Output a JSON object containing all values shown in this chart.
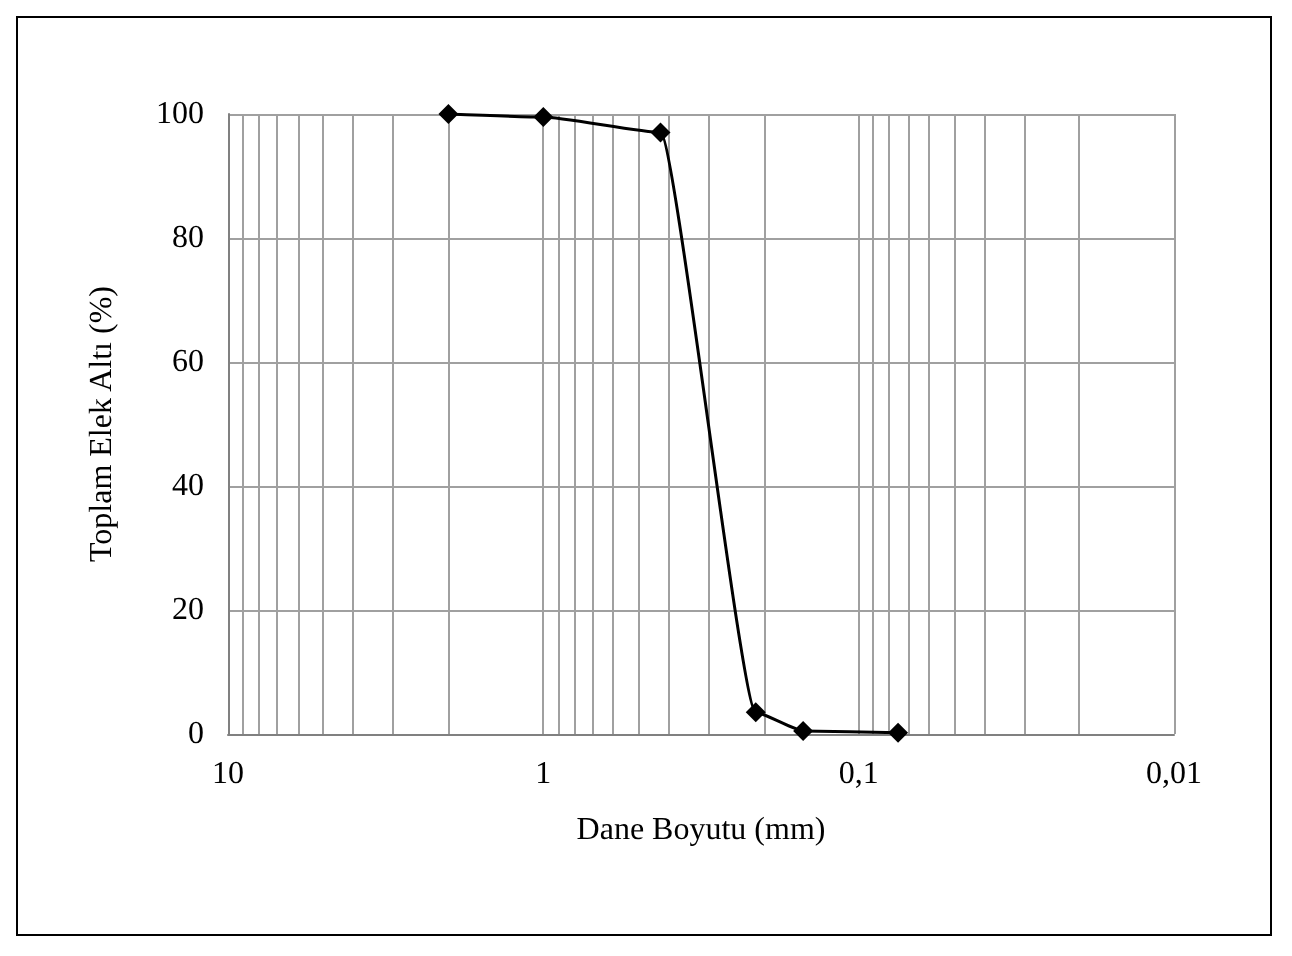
{
  "chart_data": {
    "type": "line",
    "xlabel": "Dane Boyutu (mm)",
    "ylabel": "Toplam Elek Altı (%)",
    "x": [
      2,
      1,
      0.425,
      0.212,
      0.15,
      0.075
    ],
    "series": [
      {
        "color": "#000000",
        "values": [
          100,
          99.5,
          97,
          3.5,
          0.5,
          0.2
        ]
      }
    ],
    "log": "x",
    "xlim": [
      10,
      0.01
    ],
    "xticks": [
      {
        "value": 10,
        "label": "10"
      },
      {
        "value": 9,
        "label": null
      },
      {
        "value": 8,
        "label": null
      },
      {
        "value": 7,
        "label": null
      },
      {
        "value": 6,
        "label": null
      },
      {
        "value": 5,
        "label": null
      },
      {
        "value": 4,
        "label": null
      },
      {
        "value": 3,
        "label": null
      },
      {
        "value": 2,
        "label": null
      },
      {
        "value": 1,
        "label": "1"
      },
      {
        "value": 0.9,
        "label": null
      },
      {
        "value": 0.8,
        "label": null
      },
      {
        "value": 0.7,
        "label": null
      },
      {
        "value": 0.6,
        "label": null
      },
      {
        "value": 0.5,
        "label": null
      },
      {
        "value": 0.4,
        "label": null
      },
      {
        "value": 0.3,
        "label": null
      },
      {
        "value": 0.2,
        "label": null
      },
      {
        "value": 0.1,
        "label": "0,1"
      },
      {
        "value": 0.09,
        "label": null
      },
      {
        "value": 0.08,
        "label": null
      },
      {
        "value": 0.07,
        "label": null
      },
      {
        "value": 0.06,
        "label": null
      },
      {
        "value": 0.05,
        "label": null
      },
      {
        "value": 0.04,
        "label": null
      },
      {
        "value": 0.03,
        "label": null
      },
      {
        "value": 0.02,
        "label": null
      },
      {
        "value": 0.01,
        "label": "0,01"
      }
    ],
    "ylim": [
      0,
      100
    ],
    "yticks": [
      0,
      20,
      40,
      60,
      80,
      100
    ],
    "grid": true,
    "marker": "diamond",
    "line_style": "solid"
  }
}
